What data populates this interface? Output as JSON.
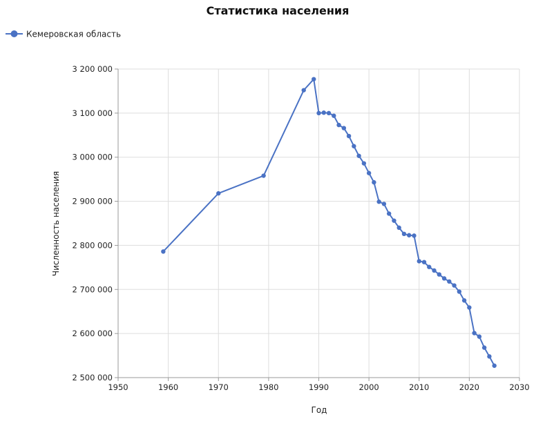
{
  "chart_data": {
    "type": "line",
    "title": "Статистика населения",
    "xlabel": "Год",
    "ylabel": "Численность населения",
    "xlim": [
      1950,
      2030
    ],
    "ylim": [
      2500000,
      3200000
    ],
    "x_ticks": [
      1950,
      1960,
      1970,
      1980,
      1990,
      2000,
      2010,
      2020,
      2030
    ],
    "y_ticks": [
      2500000,
      2600000,
      2700000,
      2800000,
      2900000,
      3000000,
      3100000,
      3200000
    ],
    "x_tick_labels": [
      "1950",
      "1960",
      "1970",
      "1980",
      "1990",
      "2000",
      "2010",
      "2020",
      "2030"
    ],
    "y_tick_labels": [
      "2 500 000",
      "2 600 000",
      "2 700 000",
      "2 800 000",
      "2 900 000",
      "3 000 000",
      "3 100 000",
      "3 200 000"
    ],
    "grid": true,
    "legend_position": "top-left",
    "colors": {
      "series": "#4a72c4",
      "grid": "#dddddd",
      "axis": "#999999"
    },
    "series": [
      {
        "name": "Кемеровская область",
        "x": [
          1959,
          1970,
          1979,
          1987,
          1989,
          1990,
          1991,
          1992,
          1993,
          1994,
          1995,
          1996,
          1997,
          1998,
          1999,
          2000,
          2001,
          2002,
          2003,
          2004,
          2005,
          2006,
          2007,
          2008,
          2009,
          2010,
          2011,
          2012,
          2013,
          2014,
          2015,
          2016,
          2017,
          2018,
          2019,
          2020,
          2021,
          2022,
          2023,
          2024,
          2025
        ],
        "y": [
          2786000,
          2918000,
          2958000,
          3152000,
          3177000,
          3100000,
          3101000,
          3100000,
          3094000,
          3073000,
          3066000,
          3048000,
          3025000,
          3003000,
          2986000,
          2964000,
          2943000,
          2899000,
          2894000,
          2872000,
          2856000,
          2840000,
          2826000,
          2823000,
          2822000,
          2764000,
          2762000,
          2751000,
          2743000,
          2734000,
          2725000,
          2718000,
          2709000,
          2695000,
          2675000,
          2659000,
          2601000,
          2593000,
          2568000,
          2548000,
          2527000
        ]
      }
    ]
  }
}
